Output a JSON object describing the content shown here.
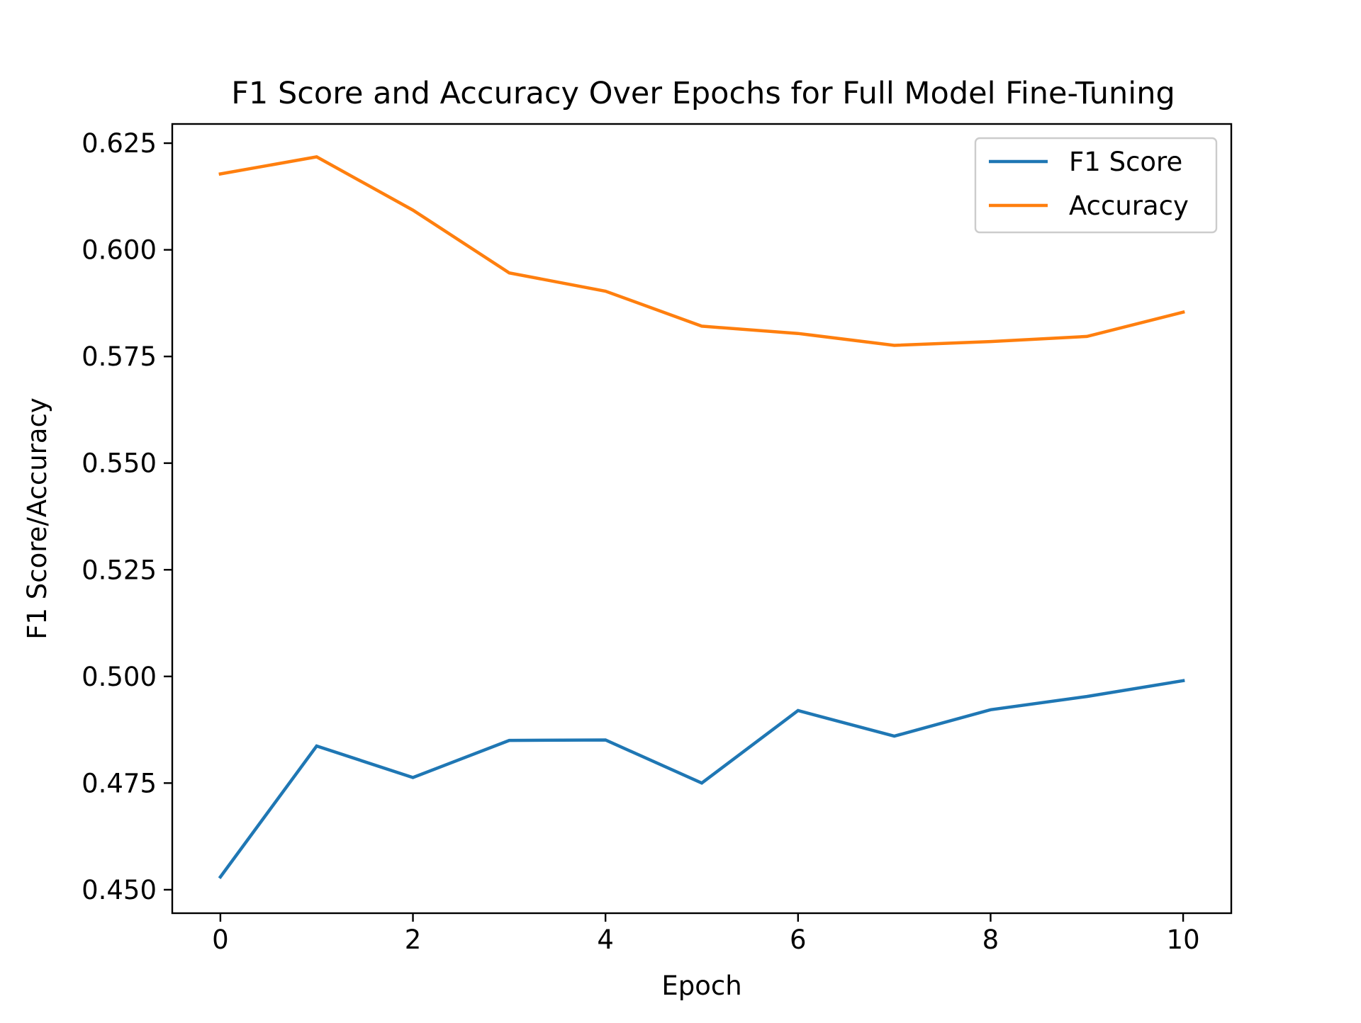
{
  "chart_data": {
    "type": "line",
    "title": "F1 Score and Accuracy Over Epochs for Full Model Fine-Tuning",
    "xlabel": "Epoch",
    "ylabel": "F1 Score/Accuracy",
    "x": [
      0,
      1,
      2,
      3,
      4,
      5,
      6,
      7,
      8,
      9,
      10
    ],
    "xlim": [
      -0.5,
      10.5
    ],
    "ylim": [
      0.4445,
      0.6295
    ],
    "xticks": [
      0,
      2,
      4,
      6,
      8,
      10
    ],
    "xtick_labels": [
      "0",
      "2",
      "4",
      "6",
      "8",
      "10"
    ],
    "yticks": [
      0.45,
      0.475,
      0.5,
      0.525,
      0.55,
      0.575,
      0.6,
      0.625
    ],
    "ytick_labels": [
      "0.450",
      "0.475",
      "0.500",
      "0.525",
      "0.550",
      "0.575",
      "0.600",
      "0.625"
    ],
    "grid": false,
    "legend_position": "top-right",
    "series": [
      {
        "name": "F1 Score",
        "color": "#1f77b4",
        "values": [
          0.453,
          0.4837,
          0.4763,
          0.485,
          0.4851,
          0.475,
          0.492,
          0.486,
          0.4922,
          0.4953,
          0.499
        ]
      },
      {
        "name": "Accuracy",
        "color": "#ff7f0e",
        "values": [
          0.6178,
          0.6218,
          0.6093,
          0.5946,
          0.5903,
          0.5821,
          0.5804,
          0.5776,
          0.5785,
          0.5797,
          0.5854
        ]
      }
    ]
  }
}
